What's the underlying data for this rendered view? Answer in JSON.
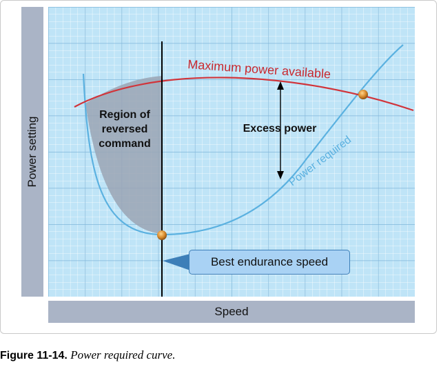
{
  "diagram": {
    "y_axis_label": "Power setting",
    "x_axis_label": "Speed",
    "labels": {
      "max_power": "Maximum power available",
      "power_required": "Power required",
      "excess_power": "Excess power",
      "region_line1": "Region of",
      "region_line2": "reversed",
      "region_line3": "command",
      "callout": "Best endurance speed"
    },
    "colors": {
      "grid_bg": "#bfe4f7",
      "grid_minor": "#ffffff",
      "grid_major": "#7fb6da",
      "axis_bar": "#aab4c6",
      "max_power_curve": "#d1343a",
      "power_required_curve": "#5bb1e0",
      "shaded_region": "#9aa5b4",
      "callout_fill": "#a9d2f4"
    }
  },
  "caption": {
    "figure_number": "Figure 11-14.",
    "title": "Power required curve."
  }
}
